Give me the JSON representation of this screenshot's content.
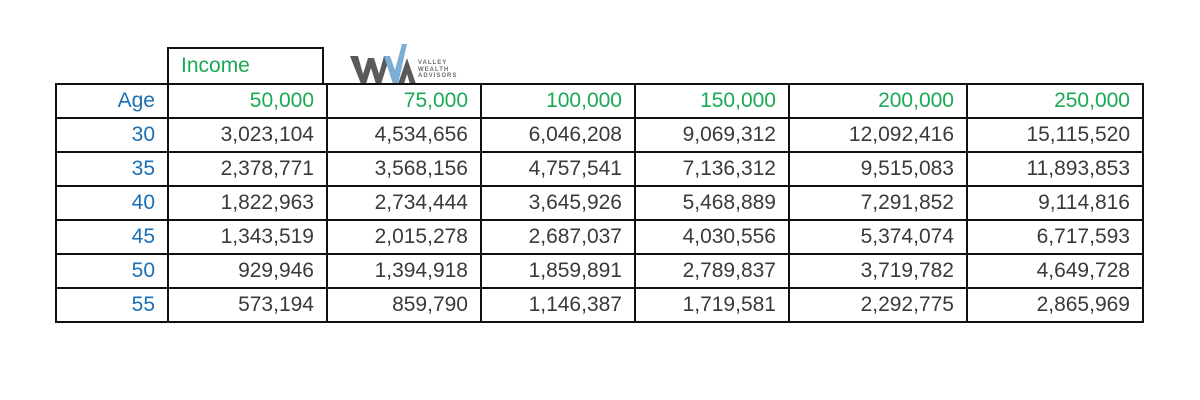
{
  "income_label": "Income",
  "logo": {
    "alt_text": "WWA",
    "lines": [
      "VALLEY",
      "WEALTH",
      "ADVISORS"
    ],
    "colors": {
      "dark": "#555555",
      "light": "#7aaed6"
    }
  },
  "header": {
    "age_label": "Age",
    "incomes": [
      "50,000",
      "75,000",
      "100,000",
      "150,000",
      "200,000",
      "250,000"
    ]
  },
  "rows": [
    {
      "age": "30",
      "values": [
        "3,023,104",
        "4,534,656",
        "6,046,208",
        "9,069,312",
        "12,092,416",
        "15,115,520"
      ]
    },
    {
      "age": "35",
      "values": [
        "2,378,771",
        "3,568,156",
        "4,757,541",
        "7,136,312",
        "9,515,083",
        "11,893,853"
      ]
    },
    {
      "age": "40",
      "values": [
        "1,822,963",
        "2,734,444",
        "3,645,926",
        "5,468,889",
        "7,291,852",
        "9,114,816"
      ]
    },
    {
      "age": "45",
      "values": [
        "1,343,519",
        "2,015,278",
        "2,687,037",
        "4,030,556",
        "5,374,074",
        "6,717,593"
      ]
    },
    {
      "age": "50",
      "values": [
        "929,946",
        "1,394,918",
        "1,859,891",
        "2,789,837",
        "3,719,782",
        "4,649,728"
      ]
    },
    {
      "age": "55",
      "values": [
        "573,194",
        "859,790",
        "1,146,387",
        "1,719,581",
        "2,292,775",
        "2,865,969"
      ]
    }
  ],
  "colors": {
    "income_green": "#1aaa55",
    "age_blue": "#1a6fb5",
    "value_gray": "#3a3a3a",
    "border": "#111111"
  }
}
